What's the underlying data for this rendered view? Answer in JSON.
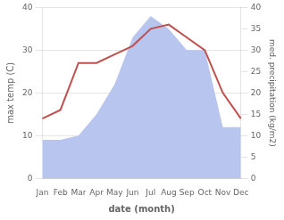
{
  "chart_data": {
    "type": "line",
    "categories": [
      "Jan",
      "Feb",
      "Mar",
      "Apr",
      "May",
      "Jun",
      "Jul",
      "Aug",
      "Sep",
      "Oct",
      "Nov",
      "Dec"
    ],
    "series": [
      {
        "type": "area",
        "axis": "y2",
        "color": "#b8c5ee",
        "values": [
          9,
          9,
          10,
          15,
          22,
          33,
          38,
          35,
          30,
          30,
          12,
          12
        ]
      },
      {
        "type": "line",
        "axis": "y",
        "color": "#c0504d",
        "values": [
          14,
          16,
          27,
          27,
          29,
          31,
          35,
          36,
          33,
          30,
          20,
          14
        ]
      }
    ],
    "xlabel": "date (month)",
    "ylabel": "max temp (C)",
    "y2label": "med. precipitation (kg/m2)",
    "ylim": [
      0,
      40
    ],
    "yticks": [
      0,
      10,
      20,
      30,
      40
    ],
    "y2lim": [
      0,
      40
    ],
    "y2ticks": [
      0,
      5,
      10,
      15,
      20,
      25,
      30,
      35,
      40
    ],
    "grid": true
  }
}
